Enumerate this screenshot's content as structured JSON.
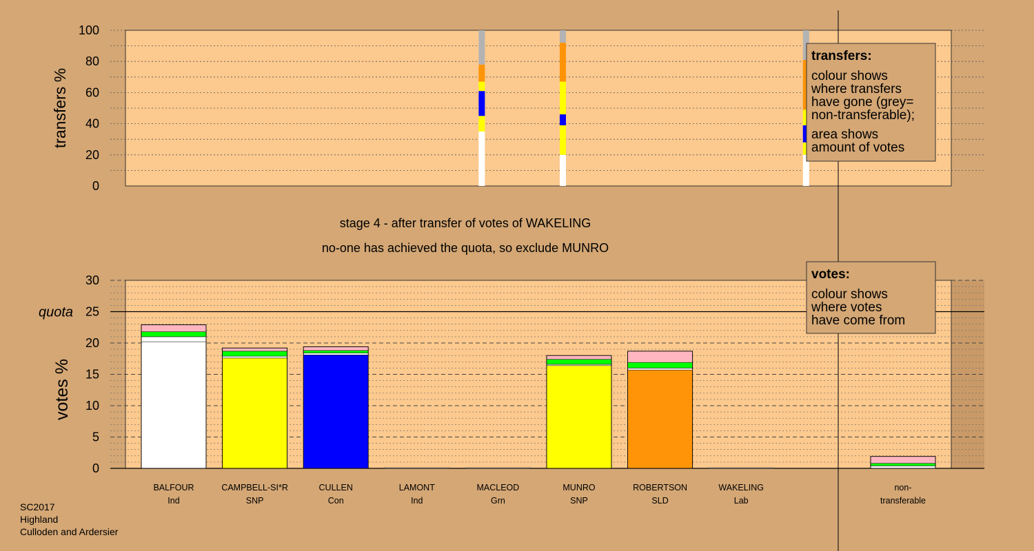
{
  "footer": {
    "line1": "SC2017",
    "line2": "Highland",
    "line3": "Culloden and Ardersier"
  },
  "colors": {
    "background": "#d4a775",
    "plot": "#fcc98e",
    "white": "#ffffff",
    "yellow": "#ffff00",
    "blue": "#0000ff",
    "orange": "#ff9408",
    "green": "#00ff00",
    "pink": "#ffb6c1",
    "grey": "#b3b3b3"
  },
  "chart_data": [
    {
      "type": "bar",
      "title": "",
      "ylabel": "transfers %",
      "ylim": [
        0,
        100
      ],
      "yticks": [
        "0",
        "20",
        "40",
        "60",
        "80",
        "100"
      ],
      "columns": [
        {
          "candidate_index": 3.8,
          "segments": [
            {
              "color": "white",
              "value": 35
            },
            {
              "color": "yellow",
              "value": 10
            },
            {
              "color": "blue",
              "value": 16
            },
            {
              "color": "yellow",
              "value": 6
            },
            {
              "color": "orange",
              "value": 11
            },
            {
              "color": "grey",
              "value": 22
            }
          ]
        },
        {
          "candidate_index": 4.8,
          "segments": [
            {
              "color": "white",
              "value": 20
            },
            {
              "color": "yellow",
              "value": 19
            },
            {
              "color": "blue",
              "value": 7
            },
            {
              "color": "yellow",
              "value": 21
            },
            {
              "color": "orange",
              "value": 25
            },
            {
              "color": "grey",
              "value": 8
            }
          ]
        },
        {
          "candidate_index": 7.8,
          "segments": [
            {
              "color": "white",
              "value": 20
            },
            {
              "color": "yellow",
              "value": 8
            },
            {
              "color": "blue",
              "value": 11
            },
            {
              "color": "yellow",
              "value": 10
            },
            {
              "color": "orange",
              "value": 32
            },
            {
              "color": "grey",
              "value": 19
            }
          ]
        }
      ],
      "legend": {
        "title": "transfers:",
        "lines": [
          "colour shows",
          "where transfers",
          "have gone (grey=",
          "non-transferable);",
          "area shows",
          "amount of votes"
        ]
      }
    },
    {
      "type": "bar",
      "title_lines": [
        "stage 4 - after transfer of votes of WAKELING",
        "no-one has achieved the quota, so exclude MUNRO"
      ],
      "ylabel": "votes %",
      "ylim": [
        0,
        30
      ],
      "yticks": [
        "0",
        "5",
        "10",
        "15",
        "20",
        "25",
        "30"
      ],
      "quota": {
        "label": "quota",
        "value": 25
      },
      "categories": [
        {
          "name": "BALFOUR",
          "party": "Ind"
        },
        {
          "name": "CAMPBELL-SI*R",
          "party": "SNP"
        },
        {
          "name": "CULLEN",
          "party": "Con"
        },
        {
          "name": "LAMONT",
          "party": "Ind"
        },
        {
          "name": "MACLEOD",
          "party": "Grn"
        },
        {
          "name": "MUNRO",
          "party": "SNP"
        },
        {
          "name": "ROBERTSON",
          "party": "SLD"
        },
        {
          "name": "WAKELING",
          "party": "Lab"
        },
        {
          "name": "non-",
          "party": "transferable"
        }
      ],
      "stacks": [
        [
          {
            "color": "white",
            "value": 20.2
          },
          {
            "color": "white",
            "value": 0.8
          },
          {
            "color": "green",
            "value": 0.8
          },
          {
            "color": "pink",
            "value": 1.1
          }
        ],
        [
          {
            "color": "yellow",
            "value": 17.6
          },
          {
            "color": "white",
            "value": 0.3
          },
          {
            "color": "green",
            "value": 0.8
          },
          {
            "color": "pink",
            "value": 0.5
          }
        ],
        [
          {
            "color": "blue",
            "value": 18.1
          },
          {
            "color": "white",
            "value": 0.3
          },
          {
            "color": "green",
            "value": 0.4
          },
          {
            "color": "pink",
            "value": 0.6
          }
        ],
        [
          {
            "color": "white",
            "value": 0.1
          }
        ],
        [
          {
            "color": "white",
            "value": 0.1
          }
        ],
        [
          {
            "color": "yellow",
            "value": 16.4
          },
          {
            "color": "white",
            "value": 0.2
          },
          {
            "color": "green",
            "value": 0.8
          },
          {
            "color": "pink",
            "value": 0.6
          }
        ],
        [
          {
            "color": "orange",
            "value": 15.7
          },
          {
            "color": "white",
            "value": 0.3
          },
          {
            "color": "green",
            "value": 0.9
          },
          {
            "color": "pink",
            "value": 1.8
          }
        ],
        [
          {
            "color": "white",
            "value": 0.1
          }
        ],
        [
          {
            "color": "white",
            "value": 0.4
          },
          {
            "color": "green",
            "value": 0.4
          },
          {
            "color": "pink",
            "value": 1.1
          }
        ]
      ],
      "legend": {
        "title": "votes:",
        "lines": [
          "colour shows",
          "where votes",
          "have come from"
        ]
      }
    }
  ]
}
